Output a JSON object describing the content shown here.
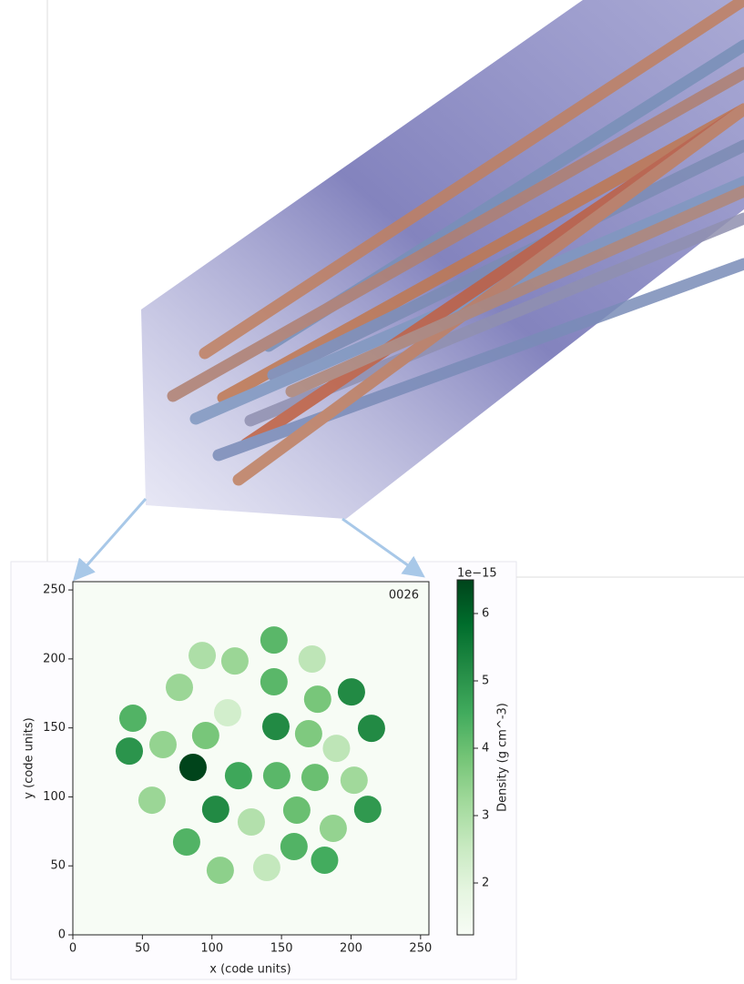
{
  "chart_data": {
    "type": "scatter",
    "xlabel": "x (code units)",
    "ylabel": "y (code units)",
    "annotation": "0026",
    "xlim": [
      0,
      256
    ],
    "ylim": [
      0,
      256
    ],
    "xticks": [
      0,
      50,
      100,
      150,
      200,
      250
    ],
    "yticks": [
      0,
      50,
      100,
      150,
      200,
      250
    ],
    "x": [
      144.6,
      93,
      116.5,
      172,
      144.6,
      76.6,
      200.3,
      176,
      111.3,
      43.2,
      214.7,
      146,
      169.5,
      95.5,
      189.5,
      64.8,
      40.6,
      86.4,
      119.1,
      146.6,
      174.1,
      202.2,
      56.9,
      102.7,
      161,
      212,
      128.3,
      187.2,
      81.8,
      159,
      181,
      139.4,
      106
    ],
    "y": [
      213.7,
      202.5,
      198.5,
      199.9,
      183.4,
      179.4,
      176.1,
      170.8,
      161,
      157,
      149.7,
      151,
      145.8,
      144.5,
      135.2,
      137.9,
      133.2,
      121.4,
      115.4,
      115.4,
      114.1,
      112.1,
      97.6,
      91,
      90.4,
      91,
      81.8,
      77.2,
      67.3,
      64,
      54.1,
      48.8,
      46.8
    ],
    "values": [
      4.2,
      3.0,
      3.3,
      2.7,
      4.2,
      3.3,
      5.2,
      3.8,
      2.3,
      4.3,
      5.2,
      5.2,
      3.7,
      3.8,
      2.7,
      3.4,
      5.0,
      6.5,
      4.6,
      4.2,
      4.0,
      3.2,
      3.3,
      5.2,
      4.0,
      4.9,
      2.9,
      3.4,
      4.3,
      4.3,
      4.5,
      2.6,
      3.5
    ],
    "colorbar": {
      "label": "Density (g cm^-3)",
      "offset_label": "1e−15",
      "clim": [
        1.23,
        6.5
      ],
      "ticks": [
        2,
        3,
        4,
        5,
        6
      ]
    },
    "colormap": [
      "#f7fcf5",
      "#e5f5e0",
      "#c7e9c0",
      "#a1d99b",
      "#74c476",
      "#41ab5d",
      "#238b45",
      "#006d2c",
      "#00441b"
    ]
  }
}
